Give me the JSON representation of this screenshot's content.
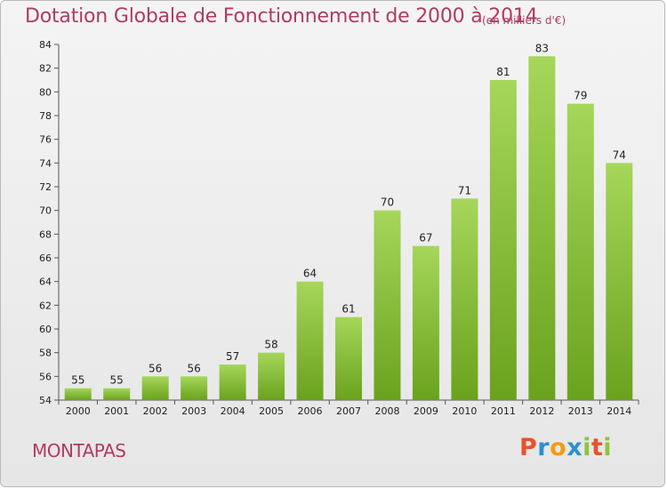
{
  "header": {
    "title": "Dotation Globale de Fonctionnement de 2000 à 2014",
    "subtitle": "(en milliers d'€)"
  },
  "footer": {
    "commune": "MONTAPAS",
    "logo": [
      "P",
      "r",
      "o",
      "x",
      "i",
      "t",
      "i"
    ],
    "logo_colors": [
      "#e8532d",
      "#2f8fce",
      "#f39c12",
      "#2f8fce",
      "#8fc43c",
      "#e8532d",
      "#8fc43c"
    ]
  },
  "colors": {
    "bar_light": "#a6d65a",
    "bar_dark": "#6aa21d",
    "title": "#b13a62"
  },
  "chart_data": {
    "type": "bar",
    "title": "Dotation Globale de Fonctionnement de 2000 à 2014",
    "subtitle": "(en milliers d'€)",
    "xlabel": "",
    "ylabel": "",
    "categories": [
      "2000",
      "2001",
      "2002",
      "2003",
      "2004",
      "2005",
      "2006",
      "2007",
      "2008",
      "2009",
      "2010",
      "2011",
      "2012",
      "2013",
      "2014"
    ],
    "values": [
      55,
      55,
      56,
      56,
      57,
      58,
      64,
      61,
      70,
      67,
      71,
      81,
      83,
      79,
      74
    ],
    "ylim": [
      54,
      84
    ],
    "yticks": [
      54,
      56,
      58,
      60,
      62,
      64,
      66,
      68,
      70,
      72,
      74,
      76,
      78,
      80,
      82,
      84
    ],
    "grid": false,
    "legend": "none"
  }
}
